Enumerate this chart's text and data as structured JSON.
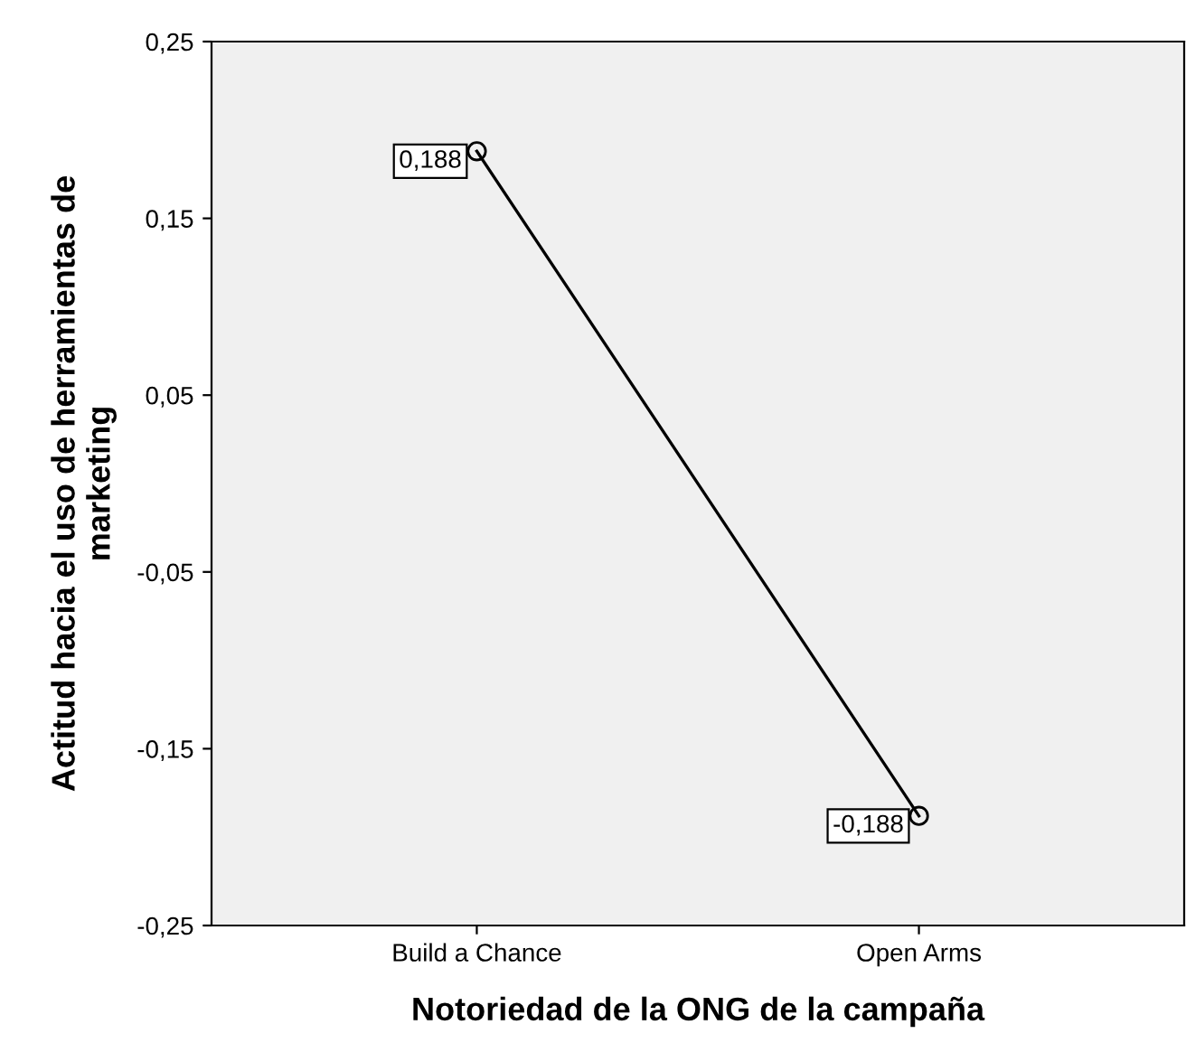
{
  "chart_data": {
    "type": "line",
    "xlabel": "Notoriedad de la ONG de la campaña",
    "ylabel": "Actitud hacia el uso de herramientas de\nmarketing",
    "categories": [
      "Build a Chance",
      "Open Arms"
    ],
    "series": [
      {
        "color": "#000000",
        "values": [
          0.188,
          -0.188
        ],
        "value_labels": [
          "0,188",
          "-0,188"
        ]
      }
    ],
    "ylim": [
      -0.25,
      0.25
    ],
    "yticks": [
      {
        "value": -0.25,
        "label": "-0,25"
      },
      {
        "value": -0.15,
        "label": "-0,15"
      },
      {
        "value": -0.05,
        "label": "-0,05"
      },
      {
        "value": 0.05,
        "label": "0,05"
      },
      {
        "value": 0.15,
        "label": "0,15"
      },
      {
        "value": 0.25,
        "label": "0,25"
      }
    ],
    "marker": "circle",
    "line_style": "solid",
    "grid": false,
    "legend": false
  }
}
